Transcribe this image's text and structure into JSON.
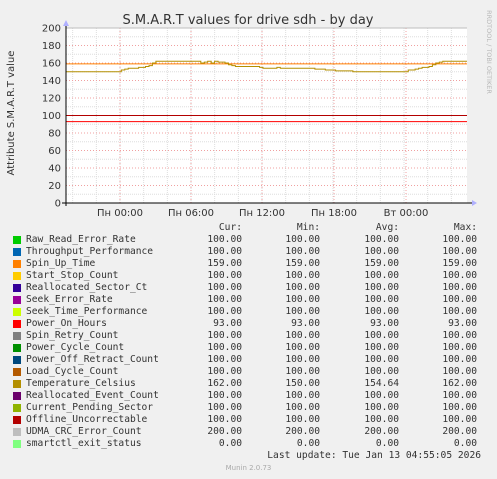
{
  "chart_data": {
    "type": "line",
    "title": "S.M.A.R.T values for drive sdh - by day",
    "ylabel": "Attribute S.M.A.R.T value",
    "watermark": "RRDTOOL / TOBI OETIKER",
    "ylim": [
      0,
      200
    ],
    "yticks": [
      0,
      20,
      40,
      60,
      80,
      100,
      120,
      140,
      160,
      180,
      200
    ],
    "xticks": [
      "Пн 00:00",
      "Пн 06:00",
      "Пн 12:00",
      "Пн 18:00",
      "Вт 00:00"
    ],
    "grid": true,
    "legend_headers": {
      "cur": "Cur:",
      "min": "Min:",
      "avg": "Avg:",
      "max": "Max:"
    },
    "series": [
      {
        "name": "Raw_Read_Error_Rate",
        "color": "#00cc00",
        "cur": "100.00",
        "min": "100.00",
        "avg": "100.00",
        "max": "100.00",
        "value": 100
      },
      {
        "name": "Throughput_Performance",
        "color": "#0066b3",
        "cur": "100.00",
        "min": "100.00",
        "avg": "100.00",
        "max": "100.00",
        "value": 100
      },
      {
        "name": "Spin_Up_Time",
        "color": "#ff8000",
        "cur": "159.00",
        "min": "159.00",
        "avg": "159.00",
        "max": "159.00",
        "value": 159
      },
      {
        "name": "Start_Stop_Count",
        "color": "#ffcc00",
        "cur": "100.00",
        "min": "100.00",
        "avg": "100.00",
        "max": "100.00",
        "value": 100
      },
      {
        "name": "Reallocated_Sector_Ct",
        "color": "#330099",
        "cur": "100.00",
        "min": "100.00",
        "avg": "100.00",
        "max": "100.00",
        "value": 100
      },
      {
        "name": "Seek_Error_Rate",
        "color": "#990099",
        "cur": "100.00",
        "min": "100.00",
        "avg": "100.00",
        "max": "100.00",
        "value": 100
      },
      {
        "name": "Seek_Time_Performance",
        "color": "#ccff00",
        "cur": "100.00",
        "min": "100.00",
        "avg": "100.00",
        "max": "100.00",
        "value": 100
      },
      {
        "name": "Power_On_Hours",
        "color": "#ff0000",
        "cur": "93.00",
        "min": "93.00",
        "avg": "93.00",
        "max": "93.00",
        "value": 93
      },
      {
        "name": "Spin_Retry_Count",
        "color": "#808080",
        "cur": "100.00",
        "min": "100.00",
        "avg": "100.00",
        "max": "100.00",
        "value": 100
      },
      {
        "name": "Power_Cycle_Count",
        "color": "#008f00",
        "cur": "100.00",
        "min": "100.00",
        "avg": "100.00",
        "max": "100.00",
        "value": 100
      },
      {
        "name": "Power_Off_Retract_Count",
        "color": "#00487d",
        "cur": "100.00",
        "min": "100.00",
        "avg": "100.00",
        "max": "100.00",
        "value": 100
      },
      {
        "name": "Load_Cycle_Count",
        "color": "#b35a00",
        "cur": "100.00",
        "min": "100.00",
        "avg": "100.00",
        "max": "100.00",
        "value": 100
      },
      {
        "name": "Temperature_Celsius",
        "color": "#b38f00",
        "cur": "162.00",
        "min": "150.00",
        "avg": "154.64",
        "max": "162.00",
        "value": 162
      },
      {
        "name": "Reallocated_Event_Count",
        "color": "#6b006b",
        "cur": "100.00",
        "min": "100.00",
        "avg": "100.00",
        "max": "100.00",
        "value": 100
      },
      {
        "name": "Current_Pending_Sector",
        "color": "#8fb300",
        "cur": "100.00",
        "min": "100.00",
        "avg": "100.00",
        "max": "100.00",
        "value": 100
      },
      {
        "name": "Offline_Uncorrectable",
        "color": "#b30000",
        "cur": "100.00",
        "min": "100.00",
        "avg": "100.00",
        "max": "100.00",
        "value": 100
      },
      {
        "name": "UDMA_CRC_Error_Count",
        "color": "#bebebe",
        "cur": "200.00",
        "min": "200.00",
        "avg": "200.00",
        "max": "200.00",
        "value": 200
      },
      {
        "name": "smartctl_exit_status",
        "color": "#80ff80",
        "cur": "0.00",
        "min": "0.00",
        "avg": "0.00",
        "max": "0.00",
        "value": 0
      }
    ],
    "temperature_trace": [
      150,
      150,
      150,
      150,
      150,
      150,
      150,
      150,
      150,
      150,
      150,
      150,
      150,
      150,
      150,
      150,
      152,
      153,
      154,
      154,
      154,
      155,
      155,
      156,
      157,
      160,
      162,
      162,
      162,
      162,
      162,
      162,
      162,
      162,
      162,
      162,
      162,
      162,
      162,
      160,
      161,
      162,
      160,
      162,
      161,
      161,
      160,
      158,
      157,
      156,
      156,
      156,
      156,
      156,
      156,
      156,
      155,
      154,
      154,
      154,
      154,
      155,
      154,
      154,
      154,
      154,
      154,
      154,
      154,
      154,
      154,
      154,
      153,
      153,
      153,
      152,
      152,
      152,
      151,
      151,
      151,
      151,
      151,
      150,
      150,
      150,
      150,
      150,
      150,
      150,
      150,
      150,
      150,
      150,
      150,
      150,
      150,
      150,
      150,
      152,
      152,
      153,
      154,
      155,
      155,
      156,
      158,
      160,
      161,
      162,
      162,
      162,
      162,
      162,
      162,
      162
    ]
  },
  "footer": {
    "last_update": "Last update: Tue Jan 13 04:55:05 2026",
    "munin_version": "Munin 2.0.73"
  }
}
